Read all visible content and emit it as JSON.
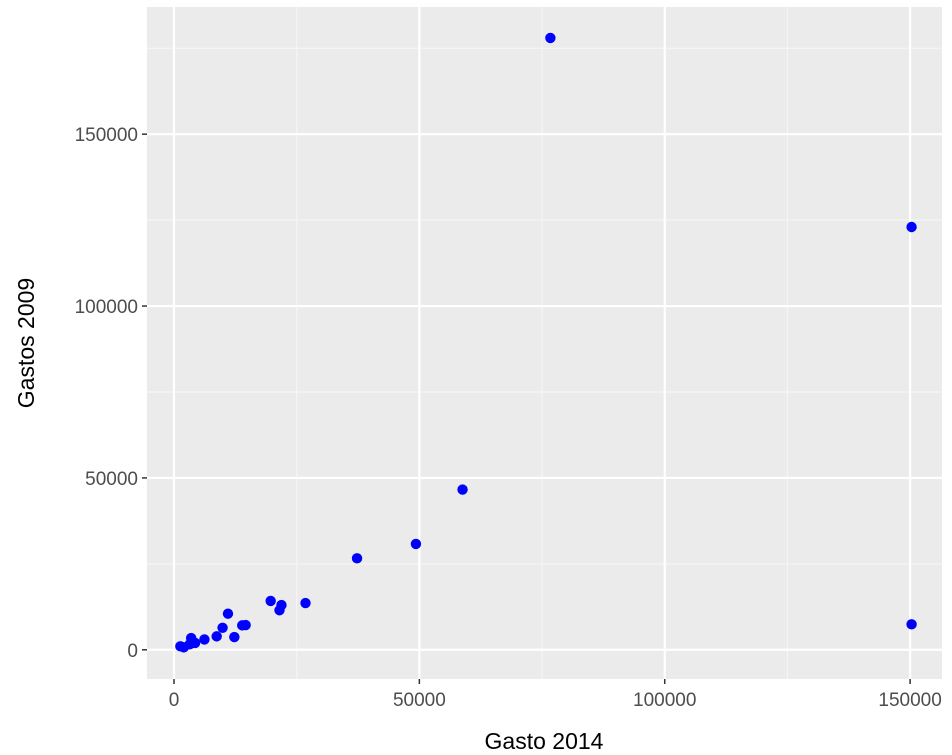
{
  "chart_data": {
    "type": "scatter",
    "xlabel": "Gasto 2014",
    "ylabel": "Gastos 2009",
    "xlim": [
      -5500,
      156500
    ],
    "ylim": [
      -8500,
      187000
    ],
    "x_ticks": [
      0,
      50000,
      100000,
      150000
    ],
    "x_tick_labels": [
      "0",
      "50000",
      "100000",
      "150000"
    ],
    "y_ticks": [
      0,
      50000,
      100000,
      150000
    ],
    "y_tick_labels": [
      "0",
      "50000",
      "100000",
      "150000"
    ],
    "grid": true,
    "legend": "none",
    "colors": {
      "panel_background": "#ebebeb",
      "grid_major": "#ffffff",
      "grid_minor": "#f5f5f5",
      "point": "#0000ff",
      "tick": "#333333"
    },
    "points": [
      {
        "x": 1300,
        "y": 1000
      },
      {
        "x": 2000,
        "y": 700
      },
      {
        "x": 3200,
        "y": 1600
      },
      {
        "x": 3500,
        "y": 3400
      },
      {
        "x": 4300,
        "y": 2000
      },
      {
        "x": 6200,
        "y": 3000
      },
      {
        "x": 8700,
        "y": 3900
      },
      {
        "x": 9900,
        "y": 6400
      },
      {
        "x": 11000,
        "y": 10500
      },
      {
        "x": 12300,
        "y": 3700
      },
      {
        "x": 13900,
        "y": 7100
      },
      {
        "x": 14600,
        "y": 7200
      },
      {
        "x": 19700,
        "y": 14200
      },
      {
        "x": 21500,
        "y": 11500
      },
      {
        "x": 21900,
        "y": 13000
      },
      {
        "x": 26800,
        "y": 13600
      },
      {
        "x": 37300,
        "y": 26600
      },
      {
        "x": 49300,
        "y": 30800
      },
      {
        "x": 58800,
        "y": 46600
      },
      {
        "x": 76700,
        "y": 178000
      },
      {
        "x": 150300,
        "y": 123000
      },
      {
        "x": 150300,
        "y": 7400
      }
    ]
  }
}
